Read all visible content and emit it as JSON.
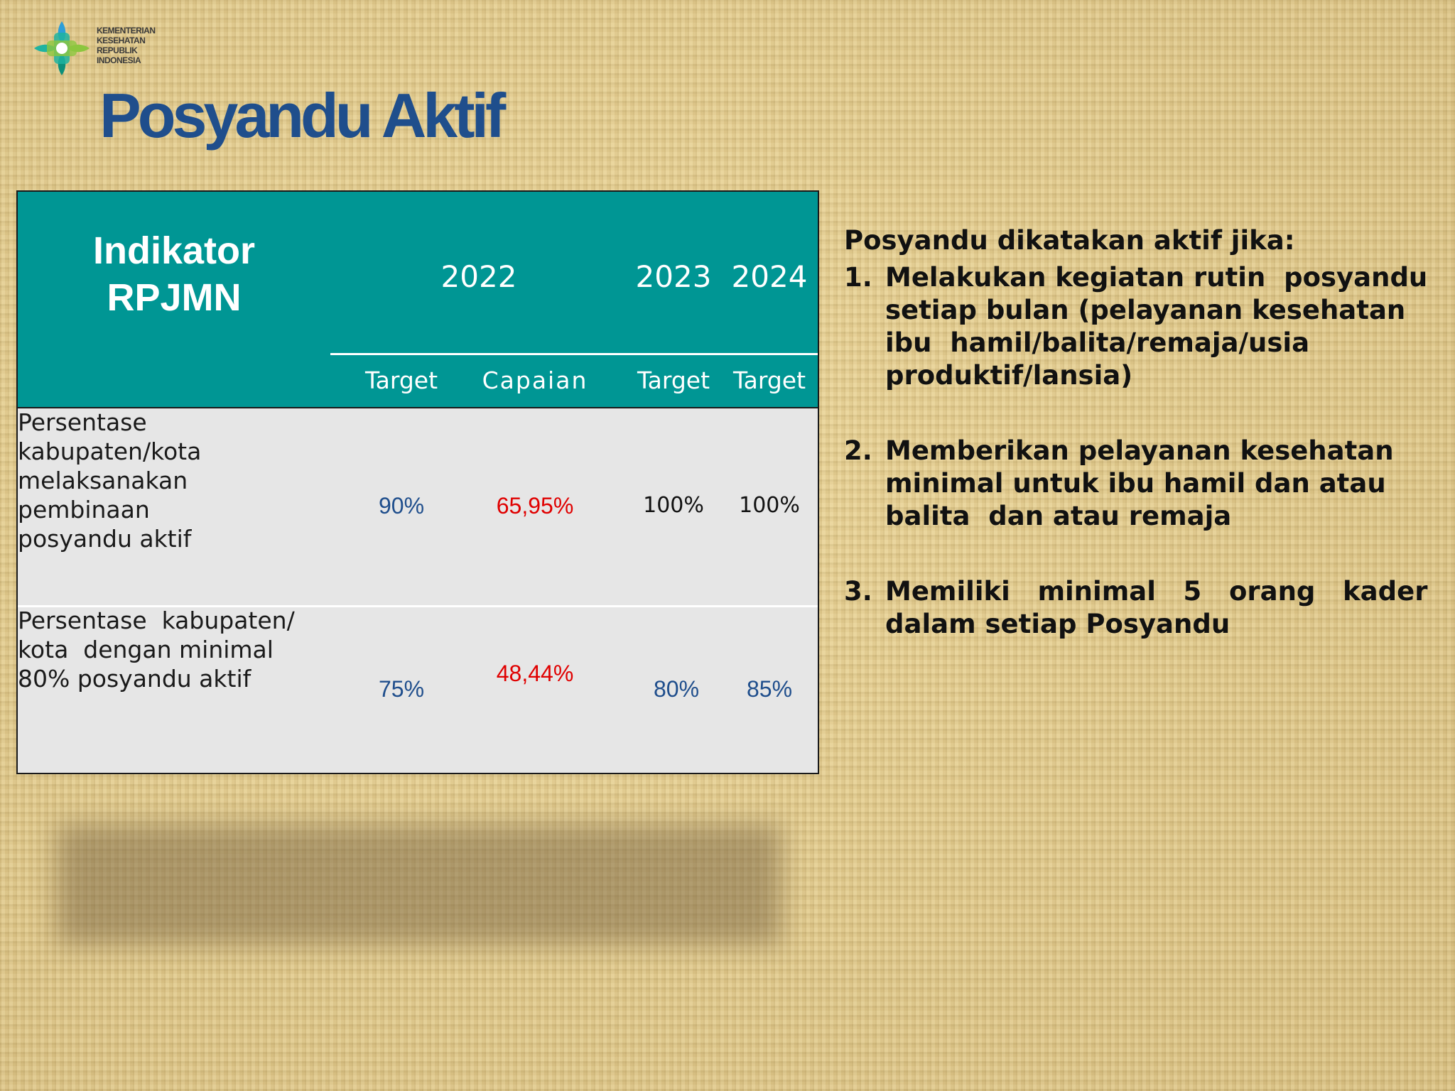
{
  "logo": {
    "lines": [
      "KEMENTERIAN",
      "KESEHATAN",
      "REPUBLIK",
      "INDONESIA"
    ],
    "colors": [
      "#1fb3a0",
      "#8cc63f",
      "#2c9ed8",
      "#0d8f7a"
    ]
  },
  "title": "Posyandu Aktif",
  "table": {
    "header": {
      "indicator": [
        "Indikator",
        "RPJMN"
      ],
      "years": [
        "2022",
        "2023",
        "2024"
      ],
      "sub": [
        "Target",
        "Capaian",
        "Target",
        "Target"
      ]
    },
    "rows": [
      {
        "indicator": [
          "Persentase",
          "kabupaten/kota",
          "melaksanakan",
          "pembinaan",
          "posyandu aktif"
        ],
        "target_2022": "90%",
        "capaian_2022": "65,95%",
        "target_2023": "100%",
        "target_2024": "100%"
      },
      {
        "indicator": [
          "Persentase  kabupaten/",
          "kota  dengan minimal",
          "80% posyandu aktif"
        ],
        "target_2022": "75%",
        "capaian_2022": "48,44%",
        "target_2023": "80%",
        "target_2024": "85%"
      }
    ]
  },
  "notes": {
    "intro": "Posyandu dikatakan aktif jika:",
    "items": [
      {
        "num": "1.",
        "lines": [
          "Melakukan kegiatan rutin  posyandu",
          "setiap bulan (pelayanan kesehatan",
          "ibu  hamil/balita/remaja/usia",
          "produktif/lansia)"
        ]
      },
      {
        "num": "2.",
        "lines": [
          "Memberikan pelayanan kesehatan",
          "minimal untuk ibu hamil dan atau",
          "balita  dan atau remaja"
        ]
      },
      {
        "num": "3.",
        "lines": [
          "Memiliki   minimal   5   orang   kader",
          "dalam setiap Posyandu"
        ]
      }
    ]
  },
  "colors": {
    "header_teal": "#009694",
    "title_blue": "#1f4e8c",
    "value_blue": "#1f4e8c",
    "value_red": "#e00000"
  }
}
